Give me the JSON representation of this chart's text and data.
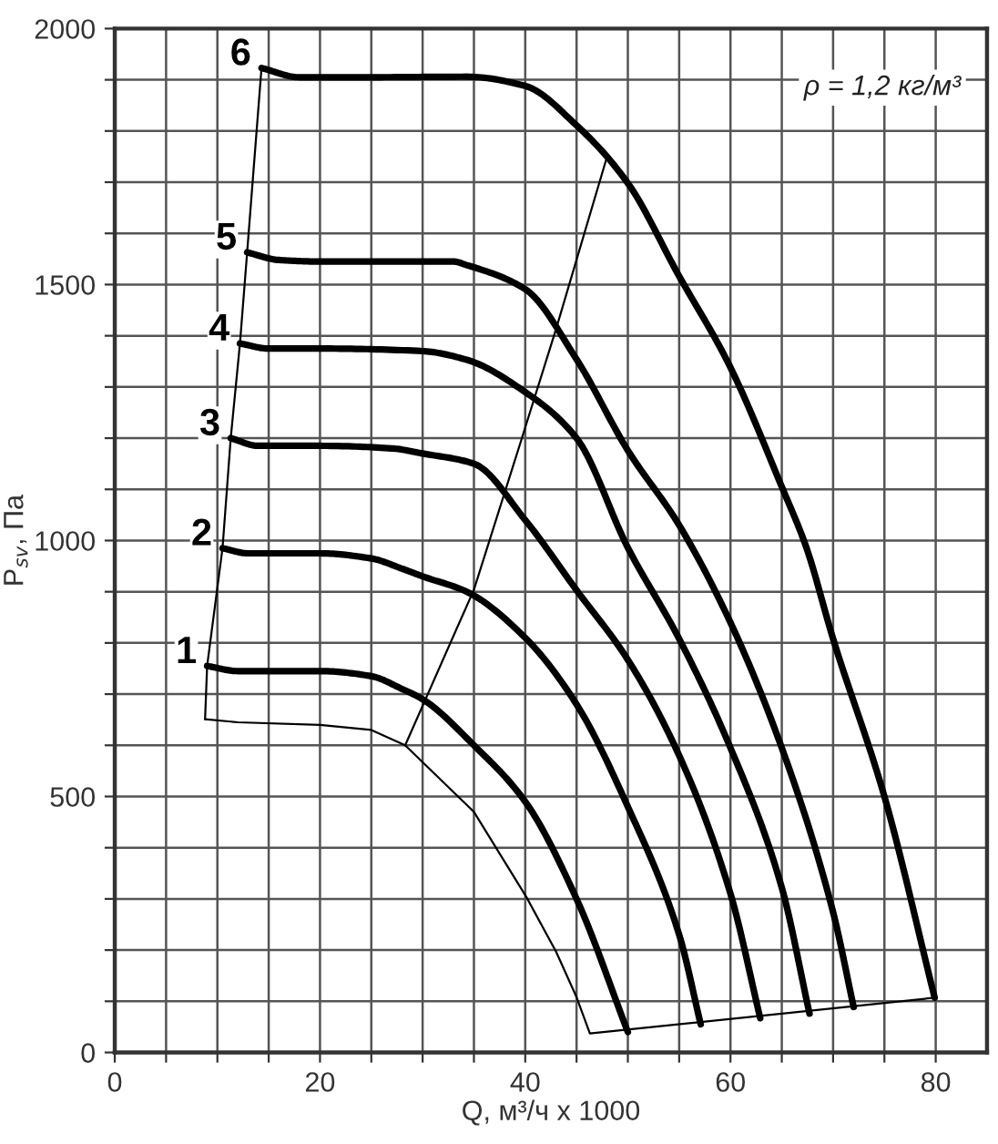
{
  "chart_data": {
    "type": "line",
    "xlabel": "Q, м³/ч x 1000",
    "ylabel": "P$_{sv}$, Па",
    "annotations": [
      "ρ = 1,2 кг/м³"
    ],
    "xlim": [
      0,
      85
    ],
    "ylim": [
      0,
      2000
    ],
    "xticks": [
      0,
      {
        "value": 5,
        "label": null
      },
      {
        "value": 10,
        "label": null
      },
      {
        "value": 15,
        "label": null
      },
      20,
      {
        "value": 25,
        "label": null
      },
      {
        "value": 30,
        "label": null
      },
      {
        "value": 35,
        "label": null
      },
      40,
      {
        "value": 45,
        "label": null
      },
      {
        "value": 50,
        "label": null
      },
      {
        "value": 55,
        "label": null
      },
      60,
      {
        "value": 65,
        "label": null
      },
      {
        "value": 70,
        "label": null
      },
      {
        "value": 75,
        "label": null
      },
      80
    ],
    "yticks": [
      0,
      {
        "value": 100,
        "label": null
      },
      {
        "value": 200,
        "label": null
      },
      {
        "value": 300,
        "label": null
      },
      {
        "value": 400,
        "label": null
      },
      500,
      {
        "value": 600,
        "label": null
      },
      {
        "value": 700,
        "label": null
      },
      {
        "value": 800,
        "label": null
      },
      {
        "value": 900,
        "label": null
      },
      1000,
      {
        "value": 1100,
        "label": null
      },
      {
        "value": 1200,
        "label": null
      },
      {
        "value": 1300,
        "label": null
      },
      {
        "value": 1400,
        "label": null
      },
      1500,
      {
        "value": 1600,
        "label": null
      },
      {
        "value": 1700,
        "label": null
      },
      {
        "value": 1800,
        "label": null
      },
      {
        "value": 1900,
        "label": null
      },
      2000
    ],
    "grid": true,
    "legend": false,
    "marker": "none",
    "line_style": "solid",
    "series": [
      {
        "name": "1",
        "color": "#000000",
        "x": [
          9,
          12,
          20,
          25,
          28,
          30,
          35,
          40,
          45,
          50
        ],
        "values": [
          755,
          745,
          745,
          735,
          710,
          690,
          600,
          490,
          300,
          40
        ]
      },
      {
        "name": "2",
        "color": "#000000",
        "x": [
          10.5,
          13,
          20,
          25,
          28,
          30,
          34.3,
          40,
          45,
          50,
          55,
          57.1
        ],
        "values": [
          985,
          975,
          975,
          965,
          945,
          930,
          900,
          810,
          680,
          480,
          230,
          55
        ]
      },
      {
        "name": "3",
        "color": "#000000",
        "x": [
          11.3,
          14,
          20,
          27,
          30,
          35,
          40,
          45,
          50,
          55,
          60,
          62.9
        ],
        "values": [
          1200,
          1185,
          1185,
          1180,
          1170,
          1150,
          1040,
          903,
          767,
          580,
          310,
          67
        ]
      },
      {
        "name": "4",
        "color": "#000000",
        "x": [
          12.2,
          15,
          20,
          30,
          34.3,
          40,
          45,
          50,
          55,
          60,
          65,
          67.7
        ],
        "values": [
          1385,
          1375,
          1375,
          1370,
          1353,
          1290,
          1200,
          986,
          808,
          595,
          322,
          76
        ]
      },
      {
        "name": "5",
        "color": "#000000",
        "x": [
          12.9,
          16,
          20,
          33,
          34.3,
          40,
          45,
          50,
          55,
          59.9,
          65,
          70,
          72
        ],
        "values": [
          1563,
          1548,
          1545,
          1545,
          1538,
          1491,
          1354,
          1176,
          1030,
          844,
          595,
          274,
          89
        ]
      },
      {
        "name": "6",
        "color": "#000000",
        "x": [
          14.3,
          18,
          25,
          34.3,
          40,
          45,
          50,
          54.9,
          59.9,
          65,
          67.4,
          70,
          75,
          79.9
        ],
        "values": [
          1923,
          1905,
          1905,
          1906,
          1888,
          1811,
          1698,
          1520,
          1342,
          1105,
          986,
          808,
          500,
          107
        ]
      },
      {
        "color": "#000000",
        "x": [
          8.8,
          9,
          10.5,
          11.3,
          12.2,
          12.9,
          14.3
        ],
        "values": [
          651,
          755,
          985,
          1200,
          1385,
          1563,
          1923
        ]
      },
      {
        "color": "#000000",
        "x": [
          8.8,
          12,
          20,
          25,
          28.3,
          35,
          40.1,
          43,
          45,
          46.3,
          79.9
        ],
        "values": [
          651,
          645,
          640,
          630,
          600,
          470,
          304,
          197,
          108,
          37,
          107
        ]
      },
      {
        "color": "#000000",
        "x": [
          28.3,
          35,
          39.5,
          43,
          47.9
        ],
        "values": [
          600,
          904,
          1189,
          1413,
          1745
        ]
      }
    ]
  }
}
